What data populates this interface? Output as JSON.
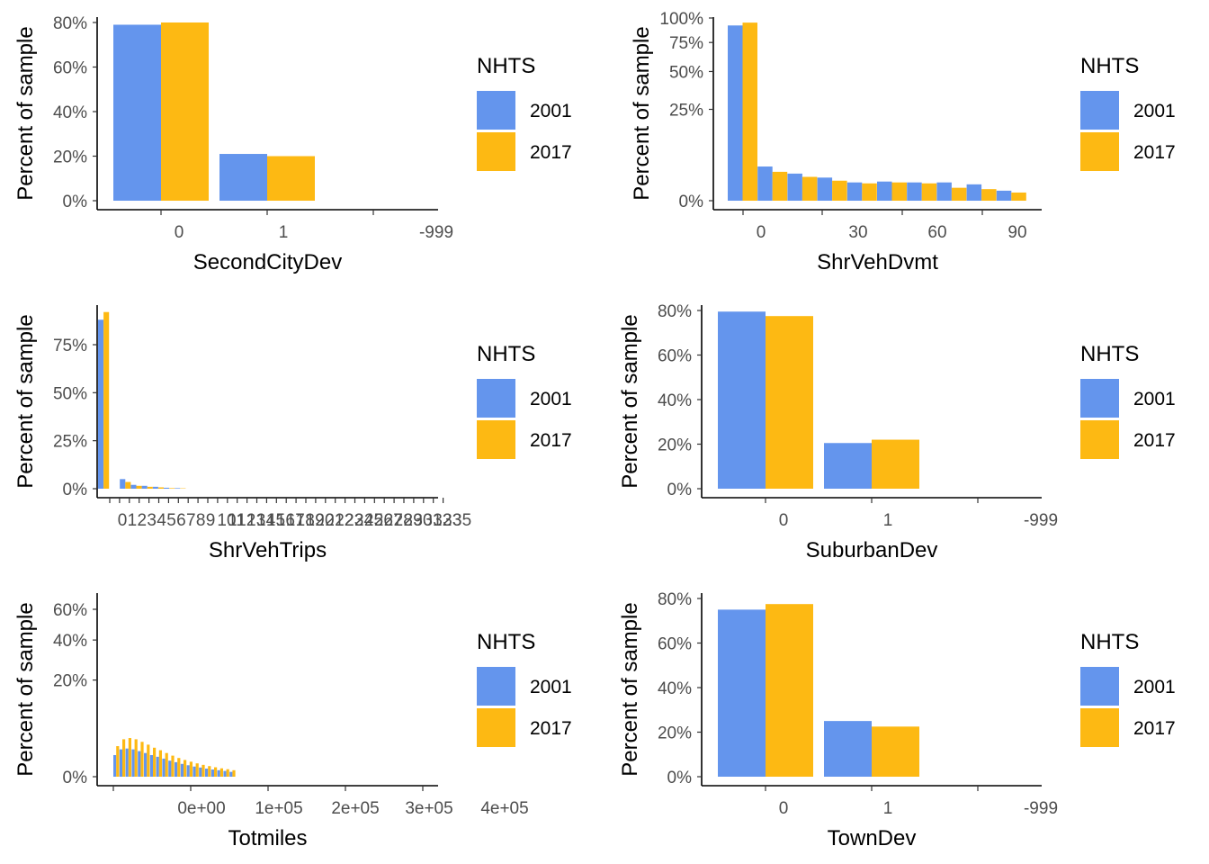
{
  "colors": {
    "s2001": "#6495ED",
    "s2017": "#FDB913"
  },
  "legend": {
    "title": "NHTS",
    "labels": [
      "2001",
      "2017"
    ]
  },
  "chart_data": [
    {
      "id": "SecondCityDev",
      "type": "bar",
      "xlabel": "SecondCityDev",
      "ylabel": "Percent of sample",
      "categories": [
        "0",
        "1",
        "-999"
      ],
      "series": [
        {
          "name": "2001",
          "values": [
            79,
            21,
            0
          ]
        },
        {
          "name": "2017",
          "values": [
            80,
            20,
            0
          ]
        }
      ],
      "yticks": [
        0,
        20,
        40,
        60,
        80
      ],
      "ytick_labels": [
        "0%",
        "20%",
        "40%",
        "60%",
        "80%"
      ],
      "ylim": [
        0,
        82
      ]
    },
    {
      "id": "ShrVehDvmt",
      "type": "bar",
      "xlabel": "ShrVehDvmt",
      "ylabel": "Percent of sample",
      "scale": "sqrt",
      "categories": [
        "0",
        "10",
        "20",
        "30",
        "40",
        "50",
        "60",
        "70",
        "80",
        "90"
      ],
      "xticks": [
        0,
        30,
        60,
        90
      ],
      "series": [
        {
          "name": "2001",
          "values": [
            92,
            3.5,
            2.2,
            1.6,
            1.0,
            1.1,
            1.0,
            1.0,
            0.8,
            0.3
          ]
        },
        {
          "name": "2017",
          "values": [
            95,
            2.5,
            1.7,
            1.2,
            0.9,
            1.0,
            0.9,
            0.5,
            0.4,
            0.2
          ]
        }
      ],
      "yticks": [
        0,
        25,
        50,
        75,
        100
      ],
      "ytick_labels": [
        "0%",
        "25%",
        "50%",
        "75%",
        "100%"
      ],
      "ylim": [
        0,
        100
      ]
    },
    {
      "id": "ShrVehTrips",
      "type": "bar",
      "xlabel": "ShrVehTrips",
      "ylabel": "Percent of sample",
      "x_tick_labels": [
        "0",
        "1",
        "2",
        "3",
        "4",
        "5",
        "6",
        "7",
        "8",
        "9",
        "10",
        "11",
        "12",
        "13",
        "14",
        "15",
        "16",
        "17",
        "18",
        "19",
        "20",
        "21",
        "22",
        "23",
        "24",
        "25",
        "26",
        "27",
        "28",
        "29",
        "30",
        "31",
        "32",
        "33",
        "35"
      ],
      "series": [
        {
          "name": "2001",
          "values": [
            88,
            5,
            2,
            1.5,
            1,
            0.5,
            0.3
          ]
        },
        {
          "name": "2017",
          "values": [
            92,
            3.5,
            1.5,
            1,
            0.7,
            0.3,
            0.2
          ]
        }
      ],
      "yticks": [
        0,
        25,
        50,
        75
      ],
      "ytick_labels": [
        "0%",
        "25%",
        "50%",
        "75%"
      ],
      "ylim": [
        0,
        95
      ]
    },
    {
      "id": "SuburbanDev",
      "type": "bar",
      "xlabel": "SuburbanDev",
      "ylabel": "Percent of sample",
      "categories": [
        "0",
        "1",
        "-999"
      ],
      "series": [
        {
          "name": "2001",
          "values": [
            79.5,
            20.5,
            0
          ]
        },
        {
          "name": "2017",
          "values": [
            77.5,
            22,
            0
          ]
        }
      ],
      "yticks": [
        0,
        20,
        40,
        60,
        80
      ],
      "ytick_labels": [
        "0%",
        "20%",
        "40%",
        "60%",
        "80%"
      ],
      "ylim": [
        0,
        82
      ]
    },
    {
      "id": "Totmiles",
      "type": "bar",
      "xlabel": "Totmiles",
      "ylabel": "Percent of sample",
      "scale": "sqrt",
      "x_tick_labels": [
        "0e+00",
        "1e+05",
        "2e+05",
        "3e+05",
        "4e+05"
      ],
      "series": [
        {
          "name": "2001",
          "values": [
            1.0,
            1.6,
            1.7,
            1.6,
            1.4,
            1.2,
            1.0,
            0.85,
            0.7,
            0.55,
            0.45,
            0.35,
            0.28,
            0.22,
            0.18,
            0.14,
            0.11,
            0.09,
            0.07,
            0.05
          ]
        },
        {
          "name": "2017",
          "values": [
            2.0,
            3.0,
            3.2,
            3.0,
            2.6,
            2.2,
            1.8,
            1.5,
            1.2,
            0.95,
            0.75,
            0.6,
            0.48,
            0.38,
            0.3,
            0.24,
            0.19,
            0.15,
            0.12,
            0.09
          ]
        }
      ],
      "yticks": [
        0,
        20,
        40,
        60
      ],
      "ytick_labels": [
        "0%",
        "20%",
        "40%",
        "60%"
      ],
      "ylim": [
        0,
        70
      ]
    },
    {
      "id": "TownDev",
      "type": "bar",
      "xlabel": "TownDev",
      "ylabel": "Percent of sample",
      "categories": [
        "0",
        "1",
        "-999"
      ],
      "series": [
        {
          "name": "2001",
          "values": [
            75,
            25,
            0
          ]
        },
        {
          "name": "2017",
          "values": [
            77.5,
            22.5,
            0
          ]
        }
      ],
      "yticks": [
        0,
        20,
        40,
        60,
        80
      ],
      "ytick_labels": [
        "0%",
        "20%",
        "40%",
        "60%",
        "80%"
      ],
      "ylim": [
        0,
        82
      ]
    }
  ]
}
